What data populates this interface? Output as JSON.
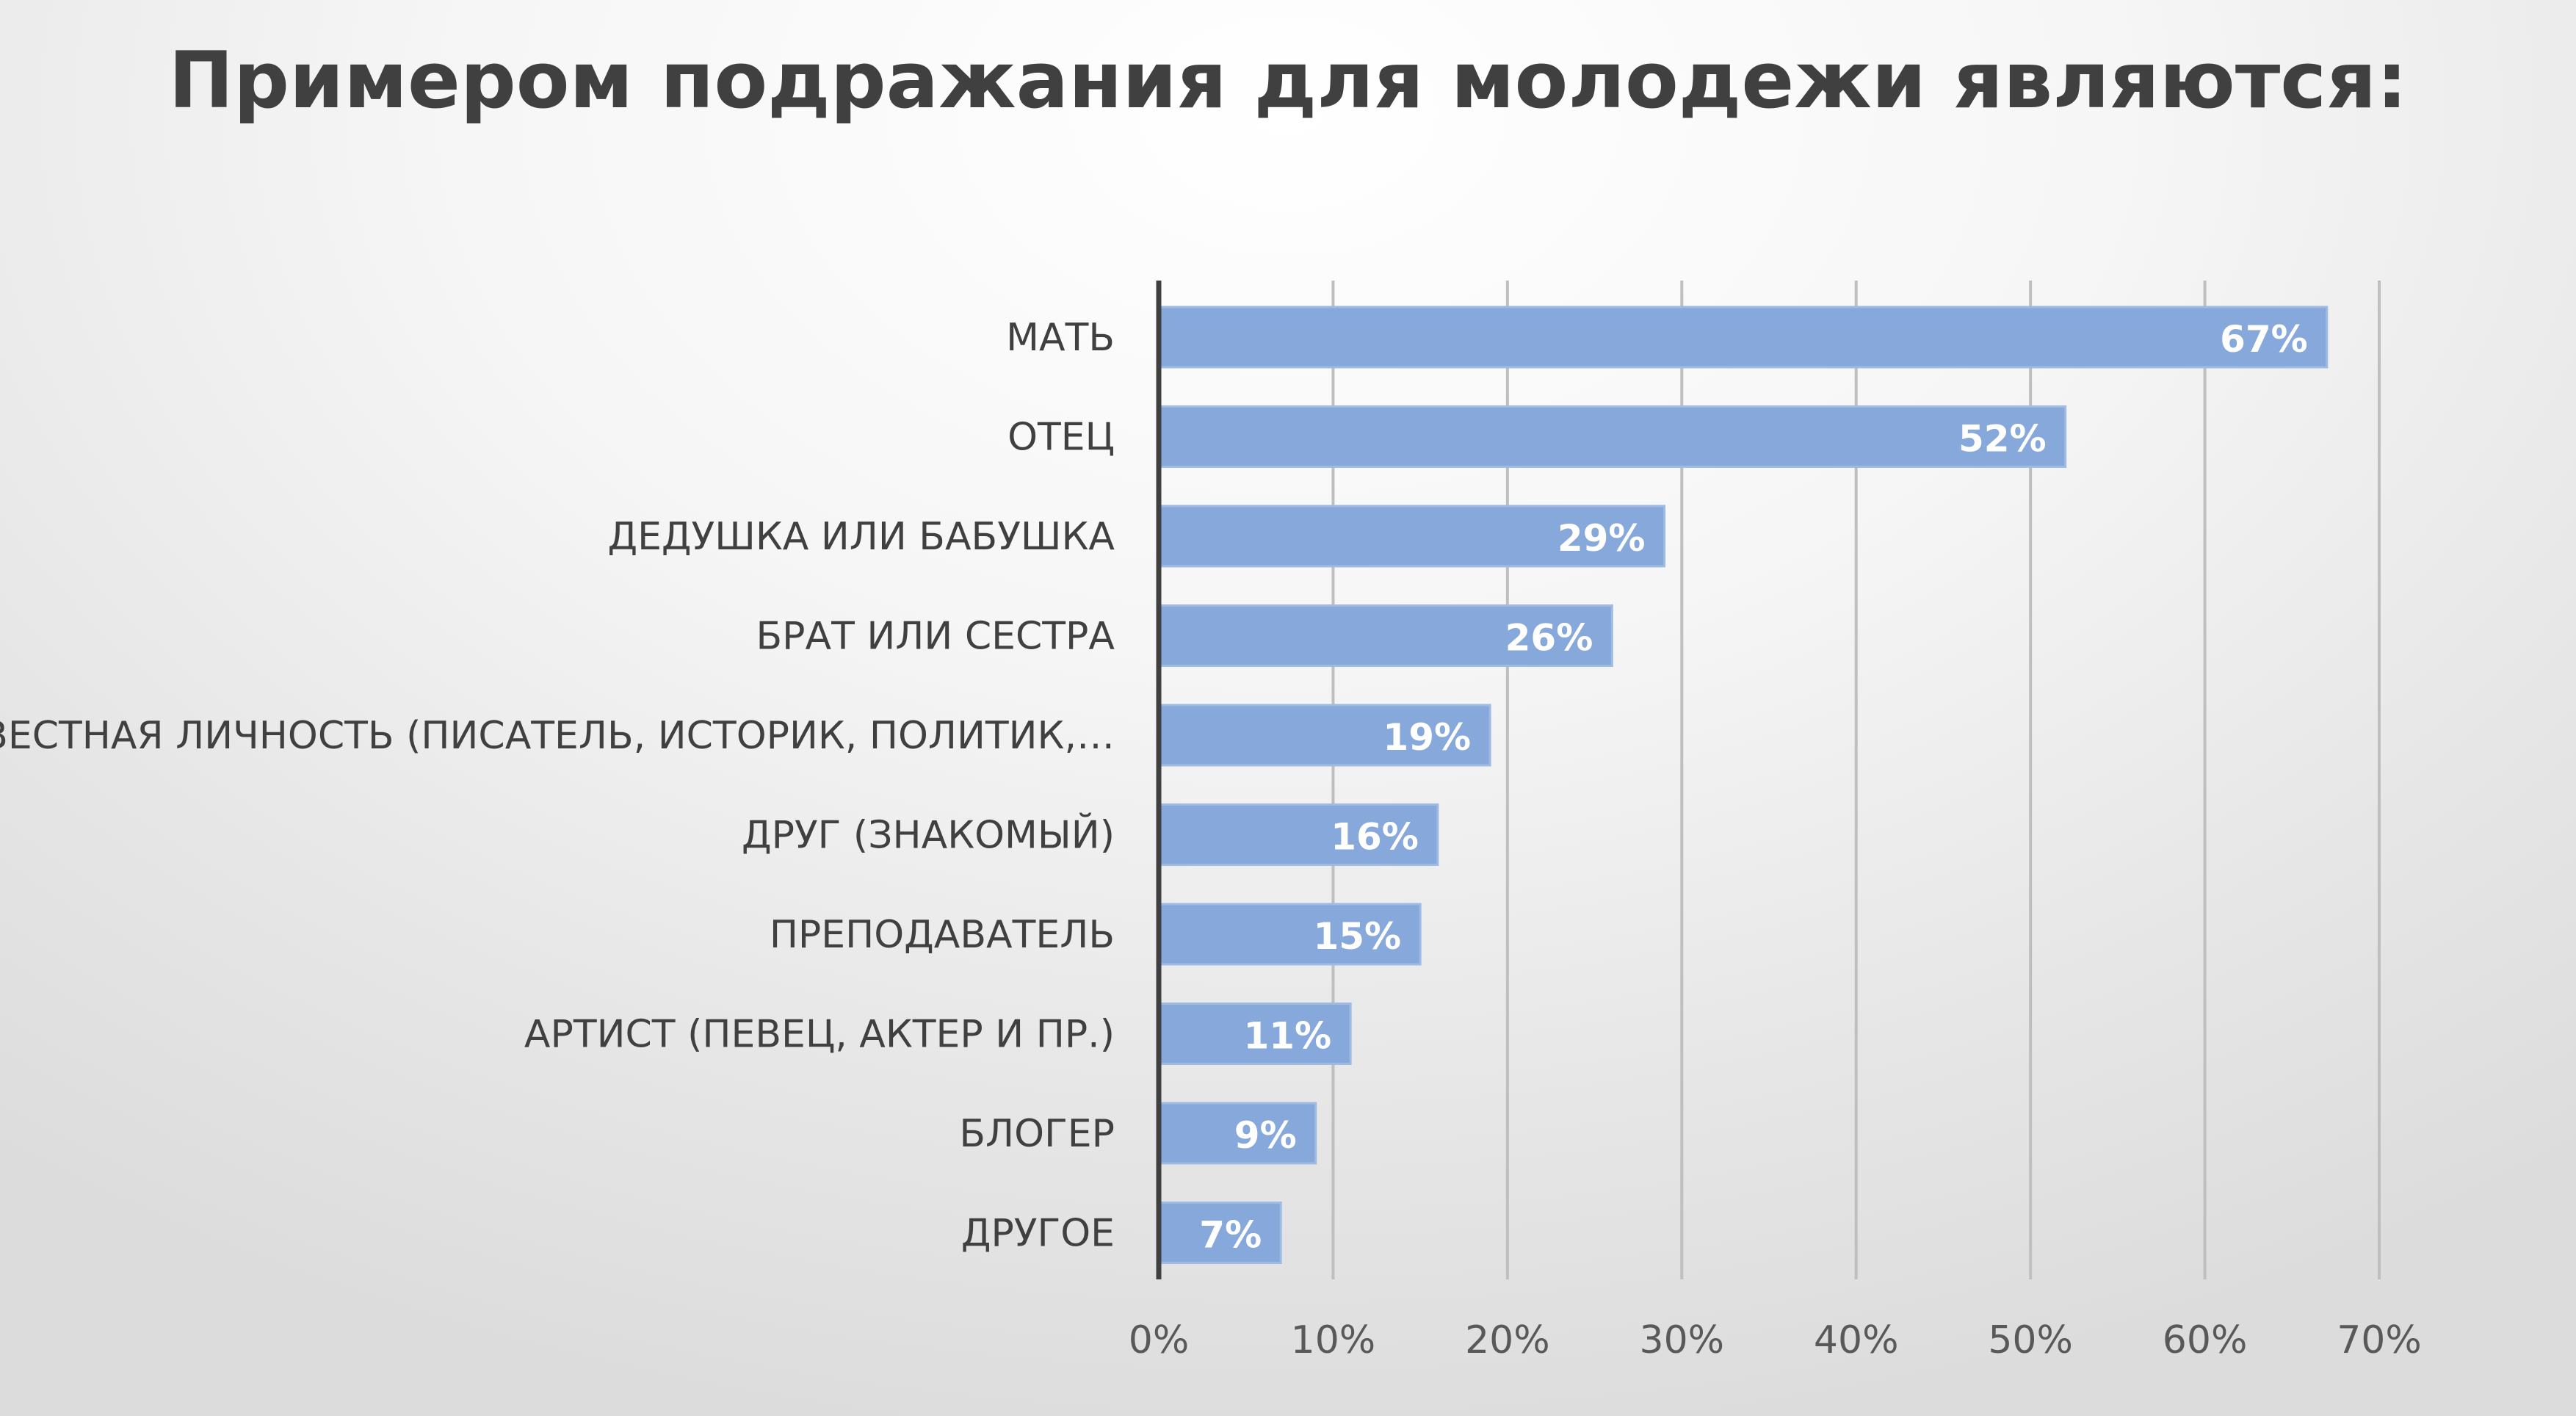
{
  "chart_data": {
    "type": "bar",
    "orientation": "horizontal",
    "title": "Примером подражания для молодежи являются:",
    "categories": [
      "МАТЬ",
      "ОТЕЦ",
      "ДЕДУШКА ИЛИ БАБУШКА",
      "БРАТ ИЛИ СЕСТРА",
      "ИЗВЕСТНАЯ ЛИЧНОСТЬ (ПИСАТЕЛЬ, ИСТОРИК, ПОЛИТИК,…",
      "ДРУГ (ЗНАКОМЫЙ)",
      "ПРЕПОДАВАТЕЛЬ",
      "АРТИСТ (ПЕВЕЦ, АКТЕР И ПР.)",
      "БЛОГЕР",
      "ДРУГОЕ"
    ],
    "values": [
      67,
      52,
      29,
      26,
      19,
      16,
      15,
      11,
      9,
      7
    ],
    "data_labels": [
      "67%",
      "52%",
      "29%",
      "26%",
      "19%",
      "16%",
      "15%",
      "11%",
      "9%",
      "7%"
    ],
    "xticks": [
      "0%",
      "10%",
      "20%",
      "30%",
      "40%",
      "50%",
      "60%",
      "70%"
    ],
    "xlim": [
      0,
      70
    ],
    "xlabel": "",
    "ylabel": "",
    "grid": true,
    "legend": "none",
    "colors": {
      "bar": "#87a8da",
      "bar_border": "#9fbbe3",
      "grid": "#bfbfbf",
      "axis": "#404040"
    }
  }
}
